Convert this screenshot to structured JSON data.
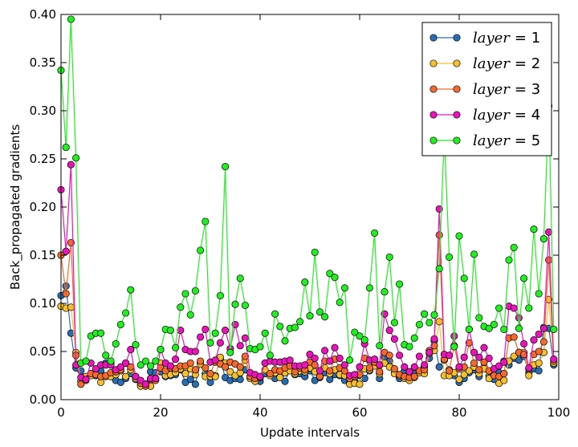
{
  "chart_data": {
    "type": "line",
    "xlabel": "Update intervals",
    "ylabel": "Back_propagated gradients",
    "xlim": [
      0,
      100
    ],
    "ylim": [
      0,
      0.4
    ],
    "x_ticks": [
      "0",
      "20",
      "40",
      "60",
      "80",
      "100"
    ],
    "y_ticks": [
      "0.00",
      "0.05",
      "0.10",
      "0.15",
      "0.20",
      "0.25",
      "0.30",
      "0.35",
      "0.40"
    ],
    "grid": false,
    "legend_position": "top-right",
    "series": [
      {
        "name": "layer = 1",
        "legend_var": "layer",
        "legend_value": "= 1",
        "color": "#2a6db0",
        "values": [
          0.108,
          0.118,
          0.069,
          0.033,
          0.03,
          0.022,
          0.027,
          0.025,
          0.03,
          0.038,
          0.038,
          0.02,
          0.018,
          0.022,
          0.027,
          0.021,
          0.016,
          0.016,
          0.029,
          0.028,
          0.029,
          0.024,
          0.025,
          0.026,
          0.031,
          0.018,
          0.021,
          0.016,
          0.038,
          0.027,
          0.018,
          0.025,
          0.042,
          0.023,
          0.02,
          0.022,
          0.021,
          0.031,
          0.024,
          0.024,
          0.019,
          0.027,
          0.026,
          0.022,
          0.024,
          0.019,
          0.031,
          0.026,
          0.027,
          0.024,
          0.03,
          0.02,
          0.023,
          0.028,
          0.021,
          0.026,
          0.025,
          0.02,
          0.018,
          0.019,
          0.025,
          0.022,
          0.03,
          0.038,
          0.022,
          0.044,
          0.04,
          0.028,
          0.022,
          0.03,
          0.025,
          0.027,
          0.03,
          0.034,
          0.043,
          0.061,
          0.034,
          0.041,
          0.031,
          0.025,
          0.018,
          0.022,
          0.028,
          0.031,
          0.024,
          0.034,
          0.025,
          0.021,
          0.028,
          0.04,
          0.036,
          0.043,
          0.041,
          0.045,
          0.028,
          0.032,
          0.03,
          0.075,
          0.074,
          0.036
        ]
      },
      {
        "name": "layer = 2",
        "legend_var": "layer",
        "legend_value": "= 2",
        "color": "#f5c030",
        "values": [
          0.097,
          0.095,
          0.096,
          0.049,
          0.019,
          0.024,
          0.025,
          0.026,
          0.018,
          0.024,
          0.024,
          0.026,
          0.03,
          0.024,
          0.031,
          0.022,
          0.014,
          0.016,
          0.014,
          0.022,
          0.038,
          0.025,
          0.026,
          0.028,
          0.032,
          0.027,
          0.032,
          0.026,
          0.037,
          0.024,
          0.024,
          0.024,
          0.044,
          0.038,
          0.029,
          0.025,
          0.028,
          0.041,
          0.022,
          0.019,
          0.023,
          0.031,
          0.025,
          0.028,
          0.023,
          0.028,
          0.03,
          0.027,
          0.03,
          0.029,
          0.033,
          0.029,
          0.024,
          0.033,
          0.027,
          0.031,
          0.026,
          0.025,
          0.016,
          0.017,
          0.016,
          0.032,
          0.031,
          0.035,
          0.027,
          0.038,
          0.034,
          0.027,
          0.025,
          0.022,
          0.02,
          0.023,
          0.028,
          0.027,
          0.048,
          0.051,
          0.081,
          0.025,
          0.025,
          0.028,
          0.021,
          0.026,
          0.03,
          0.034,
          0.027,
          0.032,
          0.022,
          0.025,
          0.017,
          0.02,
          0.04,
          0.045,
          0.049,
          0.049,
          0.025,
          0.036,
          0.038,
          0.049,
          0.104,
          0.038
        ]
      },
      {
        "name": "layer = 3",
        "legend_var": "layer",
        "legend_value": "= 3",
        "color": "#f26a2e",
        "values": [
          0.15,
          0.11,
          0.163,
          0.046,
          0.016,
          0.02,
          0.027,
          0.026,
          0.024,
          0.025,
          0.028,
          0.029,
          0.031,
          0.038,
          0.034,
          0.024,
          0.017,
          0.014,
          0.021,
          0.02,
          0.033,
          0.03,
          0.033,
          0.032,
          0.035,
          0.035,
          0.038,
          0.031,
          0.04,
          0.033,
          0.027,
          0.039,
          0.037,
          0.034,
          0.039,
          0.037,
          0.034,
          0.045,
          0.024,
          0.022,
          0.023,
          0.038,
          0.027,
          0.031,
          0.03,
          0.033,
          0.035,
          0.029,
          0.033,
          0.031,
          0.039,
          0.036,
          0.024,
          0.04,
          0.03,
          0.042,
          0.033,
          0.03,
          0.022,
          0.024,
          0.026,
          0.043,
          0.033,
          0.039,
          0.029,
          0.049,
          0.046,
          0.032,
          0.026,
          0.024,
          0.023,
          0.024,
          0.03,
          0.031,
          0.051,
          0.056,
          0.171,
          0.042,
          0.03,
          0.056,
          0.032,
          0.034,
          0.059,
          0.038,
          0.031,
          0.039,
          0.03,
          0.025,
          0.024,
          0.027,
          0.064,
          0.065,
          0.049,
          0.047,
          0.032,
          0.047,
          0.05,
          0.06,
          0.145,
          0.04
        ]
      },
      {
        "name": "layer = 4",
        "legend_var": "layer",
        "legend_value": "= 4",
        "color": "#e815b8",
        "values": [
          0.218,
          0.154,
          0.244,
          0.036,
          0.023,
          0.021,
          0.038,
          0.032,
          0.036,
          0.036,
          0.036,
          0.031,
          0.034,
          0.038,
          0.052,
          0.024,
          0.02,
          0.016,
          0.022,
          0.022,
          0.052,
          0.038,
          0.035,
          0.042,
          0.072,
          0.052,
          0.05,
          0.05,
          0.065,
          0.073,
          0.039,
          0.041,
          0.059,
          0.072,
          0.053,
          0.078,
          0.056,
          0.064,
          0.028,
          0.026,
          0.024,
          0.038,
          0.04,
          0.039,
          0.039,
          0.04,
          0.041,
          0.035,
          0.035,
          0.036,
          0.047,
          0.043,
          0.03,
          0.051,
          0.04,
          0.054,
          0.043,
          0.036,
          0.025,
          0.026,
          0.034,
          0.058,
          0.041,
          0.042,
          0.036,
          0.089,
          0.072,
          0.063,
          0.046,
          0.034,
          0.029,
          0.034,
          0.045,
          0.036,
          0.049,
          0.063,
          0.198,
          0.047,
          0.046,
          0.066,
          0.034,
          0.044,
          0.073,
          0.049,
          0.044,
          0.054,
          0.043,
          0.032,
          0.035,
          0.039,
          0.097,
          0.095,
          0.085,
          0.058,
          0.033,
          0.062,
          0.068,
          0.074,
          0.174,
          0.042
        ]
      },
      {
        "name": "layer = 5",
        "legend_var": "layer",
        "legend_value": "= 5",
        "color": "#22ee22",
        "values": [
          0.342,
          0.262,
          0.395,
          0.251,
          0.038,
          0.04,
          0.066,
          0.069,
          0.069,
          0.046,
          0.04,
          0.058,
          0.078,
          0.09,
          0.114,
          0.057,
          0.036,
          0.04,
          0.035,
          0.04,
          0.052,
          0.073,
          0.072,
          0.054,
          0.096,
          0.11,
          0.088,
          0.113,
          0.155,
          0.185,
          0.059,
          0.069,
          0.108,
          0.242,
          0.049,
          0.099,
          0.126,
          0.098,
          0.053,
          0.052,
          0.055,
          0.069,
          0.046,
          0.089,
          0.076,
          0.061,
          0.074,
          0.075,
          0.081,
          0.122,
          0.087,
          0.153,
          0.091,
          0.086,
          0.131,
          0.127,
          0.101,
          0.116,
          0.041,
          0.07,
          0.066,
          0.062,
          0.116,
          0.173,
          0.056,
          0.112,
          0.148,
          0.08,
          0.12,
          0.057,
          0.055,
          0.064,
          0.078,
          0.089,
          0.08,
          0.088,
          0.136,
          0.275,
          0.148,
          0.055,
          0.17,
          0.126,
          0.073,
          0.151,
          0.085,
          0.076,
          0.074,
          0.078,
          0.095,
          0.073,
          0.145,
          0.158,
          0.074,
          0.126,
          0.095,
          0.177,
          0.11,
          0.167,
          0.305,
          0.073
        ]
      }
    ]
  }
}
